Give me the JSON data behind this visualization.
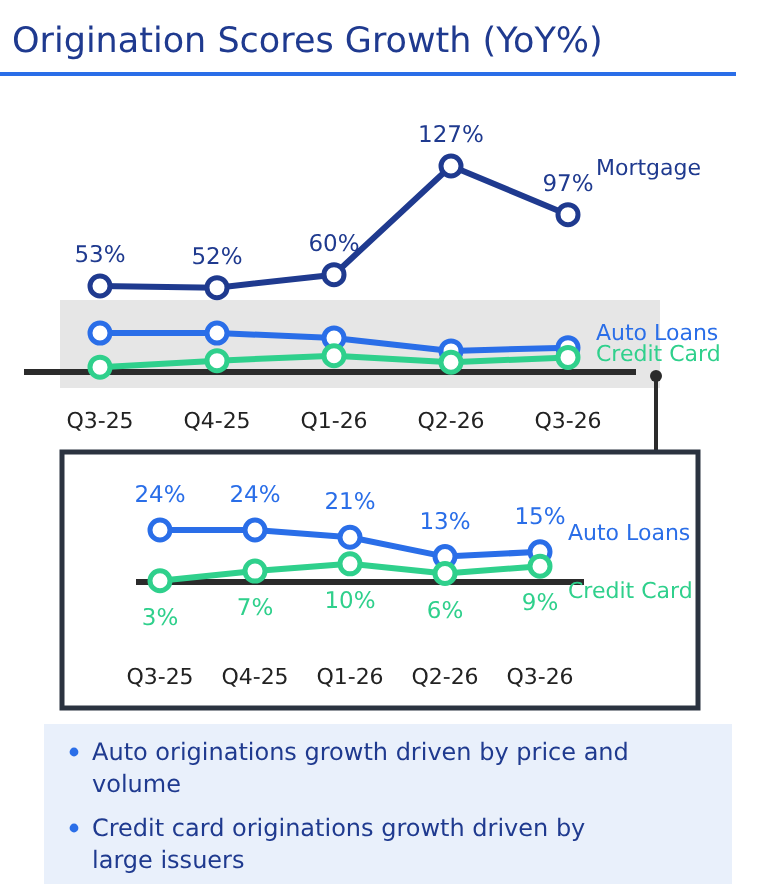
{
  "chart_data": [
    {
      "type": "line",
      "title": "Origination Scores Growth (YoY%)",
      "categories": [
        "Q3-25",
        "Q4-25",
        "Q1-26",
        "Q2-26",
        "Q3-26"
      ],
      "marker": "circle",
      "series": [
        {
          "name": "Mortgage",
          "color": "#1f3a8f",
          "values": [
            53,
            52,
            60,
            127,
            97
          ],
          "value_labels": [
            "53%",
            "52%",
            "60%",
            "127%",
            "97%"
          ]
        },
        {
          "name": "Auto Loans",
          "color": "#2a6ee8",
          "values": [
            24,
            24,
            21,
            13,
            15
          ]
        },
        {
          "name": "Credit Card",
          "color": "#2fd08c",
          "values": [
            3,
            7,
            10,
            6,
            9
          ]
        }
      ]
    },
    {
      "type": "line",
      "categories": [
        "Q3-25",
        "Q4-25",
        "Q1-26",
        "Q2-26",
        "Q3-26"
      ],
      "marker": "circle",
      "series": [
        {
          "name": "Auto Loans",
          "color": "#2a6ee8",
          "values": [
            24,
            24,
            21,
            13,
            15
          ],
          "value_labels": [
            "24%",
            "24%",
            "21%",
            "13%",
            "15%"
          ]
        },
        {
          "name": "Credit Card",
          "color": "#2fd08c",
          "values": [
            3,
            7,
            10,
            6,
            9
          ],
          "value_labels": [
            "3%",
            "7%",
            "10%",
            "6%",
            "9%"
          ]
        }
      ],
      "annotations": [
        "Auto originations growth driven by price and volume",
        "Credit card originations growth driven by large issuers"
      ]
    }
  ]
}
